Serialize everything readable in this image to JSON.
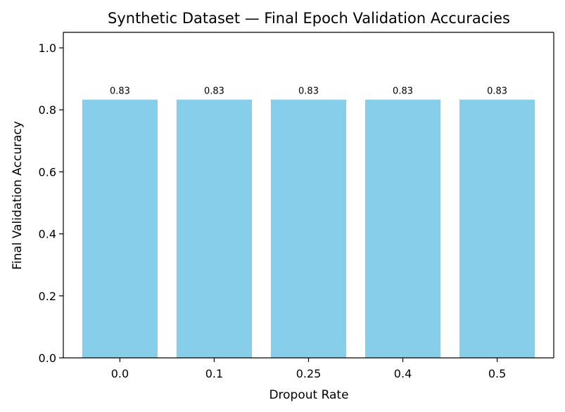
{
  "chart_data": {
    "type": "bar",
    "title": "Synthetic Dataset — Final Epoch Validation Accuracies",
    "xlabel": "Dropout Rate",
    "ylabel": "Final Validation Accuracy",
    "categories": [
      "0.0",
      "0.1",
      "0.25",
      "0.4",
      "0.5"
    ],
    "values": [
      0.833,
      0.833,
      0.833,
      0.833,
      0.833
    ],
    "value_labels": [
      "0.83",
      "0.83",
      "0.83",
      "0.83",
      "0.83"
    ],
    "ylim": [
      0,
      1.05
    ],
    "yticks": [
      0.0,
      0.2,
      0.4,
      0.6,
      0.8,
      1.0
    ],
    "ytick_labels": [
      "0.0",
      "0.2",
      "0.4",
      "0.6",
      "0.8",
      "1.0"
    ],
    "bar_color": "#87CEEB",
    "grid": false,
    "legend": "none"
  }
}
